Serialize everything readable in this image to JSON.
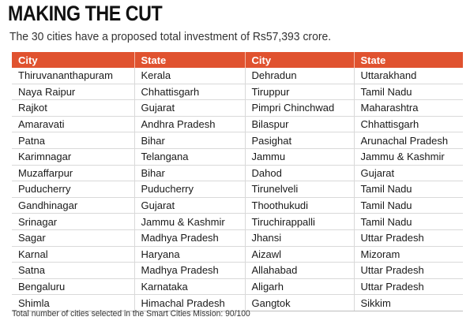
{
  "title": "MAKING THE CUT",
  "subtitle": "The 30 cities have a proposed total investment of Rs57,393 crore.",
  "columns": [
    "City",
    "State",
    "City",
    "State"
  ],
  "rows": [
    [
      "Thiruvananthapuram",
      "Kerala",
      "Dehradun",
      "Uttarakhand"
    ],
    [
      "Naya Raipur",
      "Chhattisgarh",
      "Tiruppur",
      "Tamil Nadu"
    ],
    [
      "Rajkot",
      "Gujarat",
      "Pimpri Chinchwad",
      "Maharashtra"
    ],
    [
      "Amaravati",
      "Andhra Pradesh",
      "Bilaspur",
      "Chhattisgarh"
    ],
    [
      "Patna",
      "Bihar",
      "Pasighat",
      "Arunachal Pradesh"
    ],
    [
      "Karimnagar",
      "Telangana",
      "Jammu",
      "Jammu & Kashmir"
    ],
    [
      "Muzaffarpur",
      "Bihar",
      "Dahod",
      "Gujarat"
    ],
    [
      "Puducherry",
      "Puducherry",
      "Tirunelveli",
      "Tamil Nadu"
    ],
    [
      "Gandhinagar",
      "Gujarat",
      "Thoothukudi",
      "Tamil Nadu"
    ],
    [
      "Srinagar",
      "Jammu & Kashmir",
      "Tiruchirappalli",
      "Tamil Nadu"
    ],
    [
      "Sagar",
      "Madhya Pradesh",
      "Jhansi",
      "Uttar Pradesh"
    ],
    [
      "Karnal",
      "Haryana",
      "Aizawl",
      "Mizoram"
    ],
    [
      "Satna",
      "Madhya Pradesh",
      "Allahabad",
      "Uttar Pradesh"
    ],
    [
      "Bengaluru",
      "Karnataka",
      "Aligarh",
      "Uttar Pradesh"
    ],
    [
      "Shimla",
      "Himachal Pradesh",
      "Gangtok",
      "Sikkim"
    ]
  ],
  "footnote": "Total number of cities selected in the Smart Cities Mission: 90/100",
  "colors": {
    "header_bg": "#e0522f",
    "header_text": "#ffffff",
    "row_divider": "#d9d9d9"
  }
}
